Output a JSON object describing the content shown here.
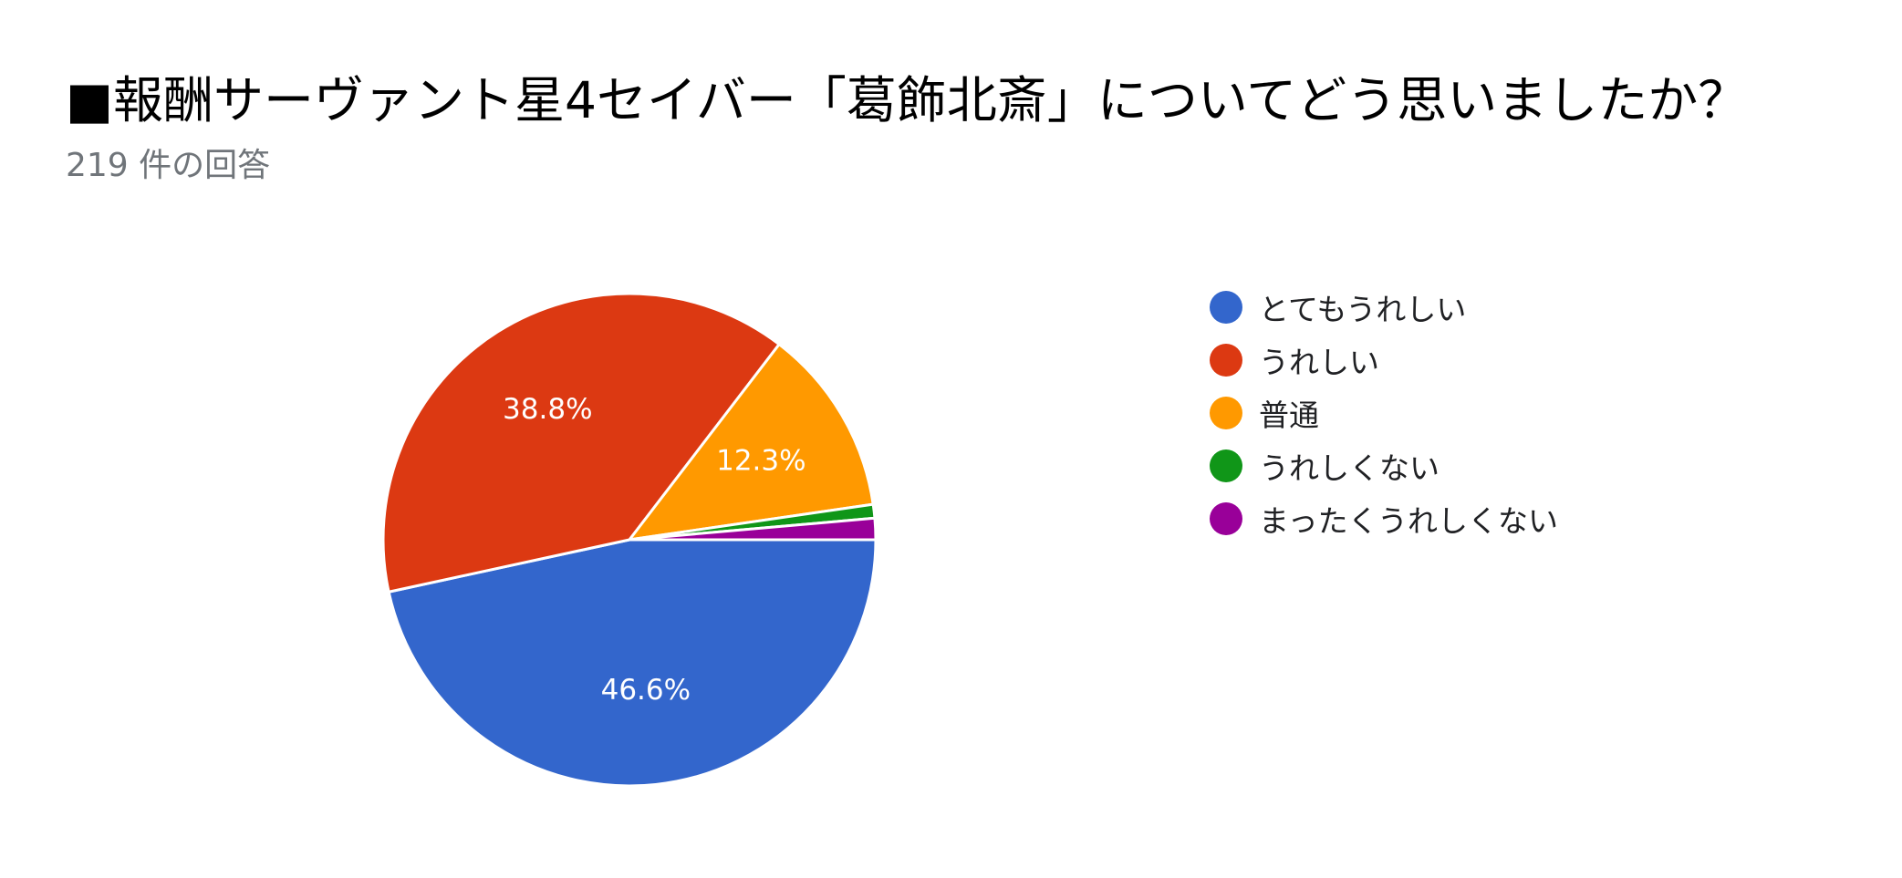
{
  "title": "■報酬サーヴァント星4セイバー「葛飾北斎」についてどう思いましたか？",
  "subtitle": "219 件の回答",
  "chart_data": {
    "type": "pie",
    "title": "■報酬サーヴァント星4セイバー「葛飾北斎」についてどう思いましたか？",
    "categories": [
      "とてもうれしい",
      "うれしい",
      "普通",
      "うれしくない",
      "まったくうれしくない"
    ],
    "values": [
      46.6,
      38.8,
      12.3,
      0.9,
      1.4
    ],
    "value_labels": [
      "46.6%",
      "38.8%",
      "12.3%",
      "",
      ""
    ],
    "colors": [
      "#3366cc",
      "#dc3912",
      "#ff9900",
      "#109618",
      "#990099"
    ],
    "legend_position": "right"
  }
}
